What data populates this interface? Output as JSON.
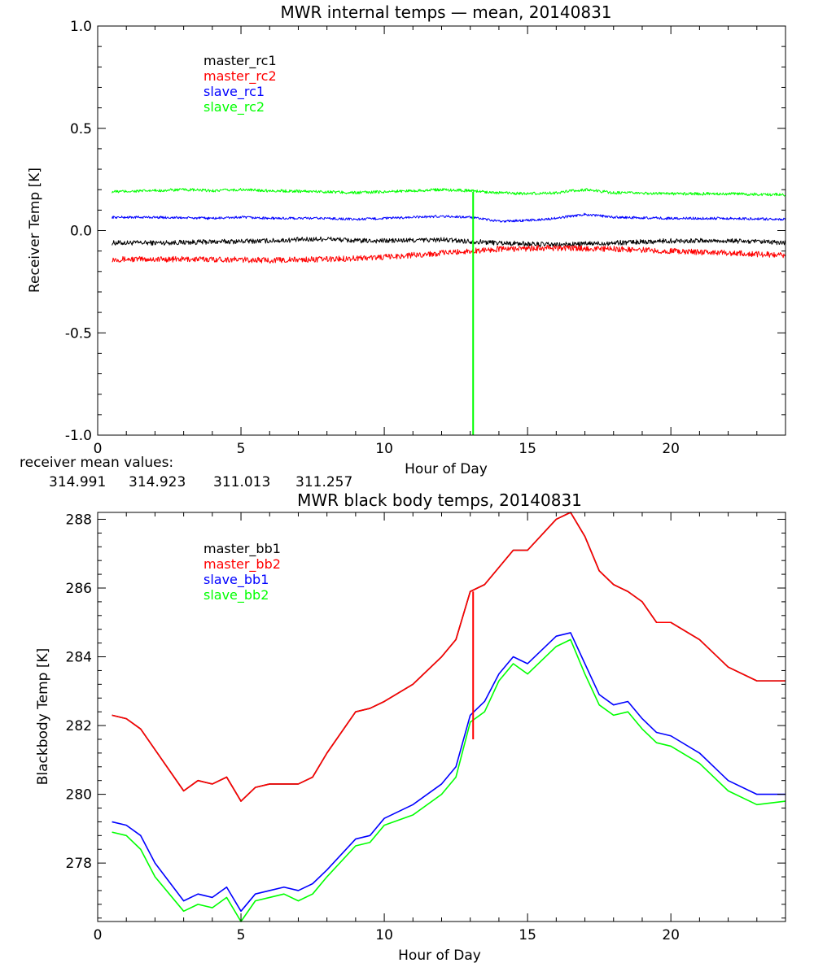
{
  "colors": {
    "black": "#000000",
    "red": "#ff0000",
    "blue": "#0000ff",
    "green": "#00ff00"
  },
  "chart_data": [
    {
      "type": "line",
      "title": "MWR internal temps — mean, 20140831",
      "xlabel": "Hour of Day",
      "ylabel": "Receiver Temp [K]",
      "xlim": [
        0,
        24
      ],
      "ylim": [
        -1.0,
        1.0
      ],
      "xticks": [
        0,
        5,
        10,
        15,
        20
      ],
      "xtick_labels": [
        "0",
        "5",
        "10",
        "15",
        "20"
      ],
      "yticks": [
        1.0,
        0.5,
        0.0,
        -0.5,
        -1.0
      ],
      "ytick_labels": [
        "1.0",
        "0.5",
        "0.0",
        "-0.5",
        "-1.0"
      ],
      "legend": [
        "master_rc1",
        "master_rc2",
        "slave_rc1",
        "slave_rc2"
      ],
      "legend_placement": "top-left",
      "series": [
        {
          "name": "master_rc1",
          "color": "#000000",
          "noise": 0.012,
          "x": [
            0.5,
            2,
            4,
            6,
            8,
            9,
            10,
            12,
            14,
            16,
            18,
            20,
            22,
            24
          ],
          "y": [
            -0.06,
            -0.06,
            -0.055,
            -0.05,
            -0.04,
            -0.05,
            -0.05,
            -0.045,
            -0.06,
            -0.07,
            -0.06,
            -0.05,
            -0.05,
            -0.06
          ]
        },
        {
          "name": "master_rc2",
          "color": "#ff0000",
          "noise": 0.014,
          "x": [
            0.5,
            2,
            4,
            6,
            8,
            10,
            11,
            12,
            13,
            14,
            16,
            18,
            20,
            22,
            24
          ],
          "y": [
            -0.14,
            -0.14,
            -0.14,
            -0.145,
            -0.14,
            -0.13,
            -0.12,
            -0.11,
            -0.1,
            -0.09,
            -0.085,
            -0.09,
            -0.1,
            -0.11,
            -0.12
          ]
        },
        {
          "name": "slave_rc1",
          "color": "#0000ff",
          "noise": 0.006,
          "x": [
            0.5,
            2,
            4,
            5,
            6,
            8,
            9,
            10,
            12,
            13,
            14,
            15,
            16,
            17,
            18,
            20,
            22,
            24
          ],
          "y": [
            0.065,
            0.065,
            0.06,
            0.065,
            0.06,
            0.06,
            0.055,
            0.06,
            0.07,
            0.065,
            0.045,
            0.05,
            0.06,
            0.08,
            0.065,
            0.06,
            0.06,
            0.055
          ]
        },
        {
          "name": "slave_rc2",
          "color": "#00ff00",
          "noise": 0.007,
          "x": [
            0.5,
            2,
            3,
            4,
            5,
            6,
            8,
            9,
            10,
            12,
            13,
            14,
            15,
            16,
            17,
            18,
            20,
            22,
            24
          ],
          "y": [
            0.19,
            0.195,
            0.2,
            0.195,
            0.2,
            0.195,
            0.19,
            0.185,
            0.19,
            0.2,
            0.195,
            0.185,
            0.18,
            0.185,
            0.2,
            0.185,
            0.18,
            0.18,
            0.175
          ]
        }
      ],
      "spikes": [
        {
          "series": "slave_rc2",
          "x": 13.1,
          "y_from": 0.19,
          "y_to": -1.0,
          "color": "#00ff00"
        }
      ]
    },
    {
      "type": "line",
      "title": "MWR black body temps, 20140831",
      "xlabel": "Hour of Day",
      "ylabel": "Blackbody Temp [K]",
      "xlim": [
        0,
        24
      ],
      "ylim": [
        276.3,
        288.2
      ],
      "xticks": [
        0,
        5,
        10,
        15,
        20
      ],
      "xtick_labels": [
        "0",
        "5",
        "10",
        "15",
        "20"
      ],
      "yticks": [
        278,
        280,
        282,
        284,
        286,
        288
      ],
      "ytick_labels": [
        "278",
        "280",
        "282",
        "284",
        "286",
        "288"
      ],
      "legend": [
        "master_bb1",
        "master_bb2",
        "slave_bb1",
        "slave_bb2"
      ],
      "legend_placement": "top-left",
      "series": [
        {
          "name": "master_bb1",
          "color": "#000000",
          "x": [
            0.5,
            1,
            1.5,
            2,
            3,
            3.5,
            4,
            4.5,
            5,
            5.5,
            6,
            6.5,
            7,
            7.5,
            8,
            9,
            9.5,
            10,
            11,
            12,
            12.5,
            13,
            13.5,
            14,
            14.5,
            15,
            16,
            16.5,
            17,
            17.5,
            18,
            18.5,
            19,
            19.5,
            20,
            21,
            22,
            23,
            24
          ],
          "y": [
            282.3,
            282.2,
            281.9,
            281.3,
            280.1,
            280.4,
            280.3,
            280.5,
            279.8,
            280.2,
            280.3,
            280.3,
            280.3,
            280.5,
            281.2,
            282.4,
            282.5,
            282.7,
            283.2,
            284.0,
            284.5,
            285.9,
            286.1,
            286.6,
            287.1,
            287.1,
            288.0,
            288.2,
            287.5,
            286.5,
            286.1,
            285.9,
            285.6,
            285.0,
            285.0,
            284.5,
            283.7,
            283.3,
            283.3
          ]
        },
        {
          "name": "master_bb2",
          "color": "#ff0000",
          "x": [
            0.5,
            1,
            1.5,
            2,
            3,
            3.5,
            4,
            4.5,
            5,
            5.5,
            6,
            6.5,
            7,
            7.5,
            8,
            9,
            9.5,
            10,
            11,
            12,
            12.5,
            13,
            13.5,
            14,
            14.5,
            15,
            16,
            16.5,
            17,
            17.5,
            18,
            18.5,
            19,
            19.5,
            20,
            21,
            22,
            23,
            24
          ],
          "y": [
            282.3,
            282.2,
            281.9,
            281.3,
            280.1,
            280.4,
            280.3,
            280.5,
            279.8,
            280.2,
            280.3,
            280.3,
            280.3,
            280.5,
            281.2,
            282.4,
            282.5,
            282.7,
            283.2,
            284.0,
            284.5,
            285.9,
            286.1,
            286.6,
            287.1,
            287.1,
            288.0,
            288.2,
            287.5,
            286.5,
            286.1,
            285.9,
            285.6,
            285.0,
            285.0,
            284.5,
            283.7,
            283.3,
            283.3
          ]
        },
        {
          "name": "slave_bb1",
          "color": "#0000ff",
          "x": [
            0.5,
            1,
            1.5,
            2,
            3,
            3.5,
            4,
            4.5,
            5,
            5.5,
            6,
            6.5,
            7,
            7.5,
            8,
            9,
            9.5,
            10,
            11,
            12,
            12.5,
            13,
            13.5,
            14,
            14.5,
            15,
            16,
            16.5,
            17,
            17.5,
            18,
            18.5,
            19,
            19.5,
            20,
            21,
            22,
            23,
            24
          ],
          "y": [
            279.2,
            279.1,
            278.8,
            278.0,
            276.9,
            277.1,
            277.0,
            277.3,
            276.6,
            277.1,
            277.2,
            277.3,
            277.2,
            277.4,
            277.8,
            278.7,
            278.8,
            279.3,
            279.7,
            280.3,
            280.8,
            282.3,
            282.7,
            283.5,
            284.0,
            283.8,
            284.6,
            284.7,
            283.8,
            282.9,
            282.6,
            282.7,
            282.2,
            281.8,
            281.7,
            281.2,
            280.4,
            280.0,
            280.0
          ]
        },
        {
          "name": "slave_bb2",
          "color": "#00ff00",
          "x": [
            0.5,
            1,
            1.5,
            2,
            3,
            3.5,
            4,
            4.5,
            5,
            5.5,
            6,
            6.5,
            7,
            7.5,
            8,
            9,
            9.5,
            10,
            11,
            12,
            12.5,
            13,
            13.5,
            14,
            14.5,
            15,
            16,
            16.5,
            17,
            17.5,
            18,
            18.5,
            19,
            19.5,
            20,
            21,
            22,
            23,
            24
          ],
          "y": [
            278.9,
            278.8,
            278.4,
            277.6,
            276.6,
            276.8,
            276.7,
            277.0,
            276.3,
            276.9,
            277.0,
            277.1,
            276.9,
            277.1,
            277.6,
            278.5,
            278.6,
            279.1,
            279.4,
            280.0,
            280.5,
            282.1,
            282.4,
            283.3,
            283.8,
            283.5,
            284.3,
            284.5,
            283.5,
            282.6,
            282.3,
            282.4,
            281.9,
            281.5,
            281.4,
            280.9,
            280.1,
            279.7,
            279.8
          ]
        }
      ],
      "spikes": [
        {
          "series": "master_bb2",
          "x": 13.1,
          "y_from": 285.9,
          "y_to": 281.6,
          "color": "#ff0000"
        }
      ]
    }
  ],
  "receiver_mean": {
    "label": "receiver mean values:",
    "values": [
      {
        "text": "314.991",
        "color": "#000000"
      },
      {
        "text": "314.923",
        "color": "#ff0000"
      },
      {
        "text": "311.013",
        "color": "#0000ff"
      },
      {
        "text": "311.257",
        "color": "#00ff00"
      }
    ]
  }
}
